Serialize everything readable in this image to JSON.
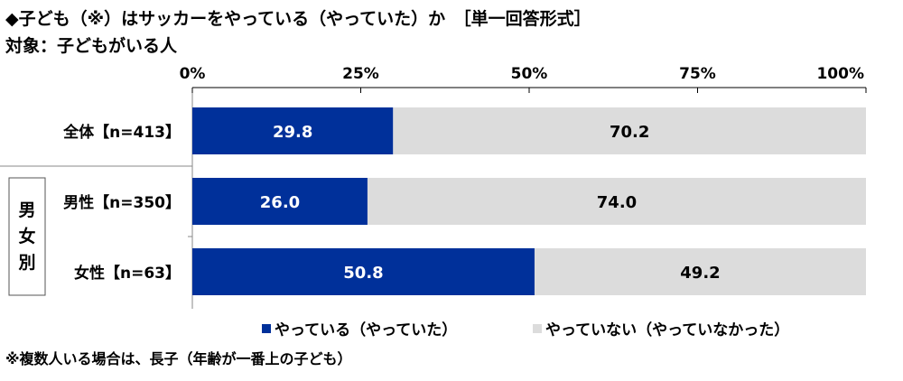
{
  "chart_data": {
    "type": "bar",
    "stacked": true,
    "title": "◆子ども（※）はサッカーをやっている（やっていた）か　［単一回答形式］",
    "subtitle": "対象：子どもがいる人",
    "group_label": "男女別",
    "categories": [
      "全体【n=413】",
      "男性【n=350】",
      "女性【n=63】"
    ],
    "series": [
      {
        "name": "やっている（やっていた）",
        "values": [
          29.8,
          26.0,
          50.8
        ],
        "color": "#00309A"
      },
      {
        "name": "やっていない（やっていなかった）",
        "values": [
          70.2,
          74.0,
          49.2
        ],
        "color": "#DCDCDC"
      }
    ],
    "xticks": [
      "0%",
      "25%",
      "50%",
      "75%",
      "100%"
    ],
    "xlim": [
      0,
      100
    ],
    "legend": "bottom",
    "footnote": "※複数人いる場合は、長子（年齢が一番上の子ども）"
  }
}
